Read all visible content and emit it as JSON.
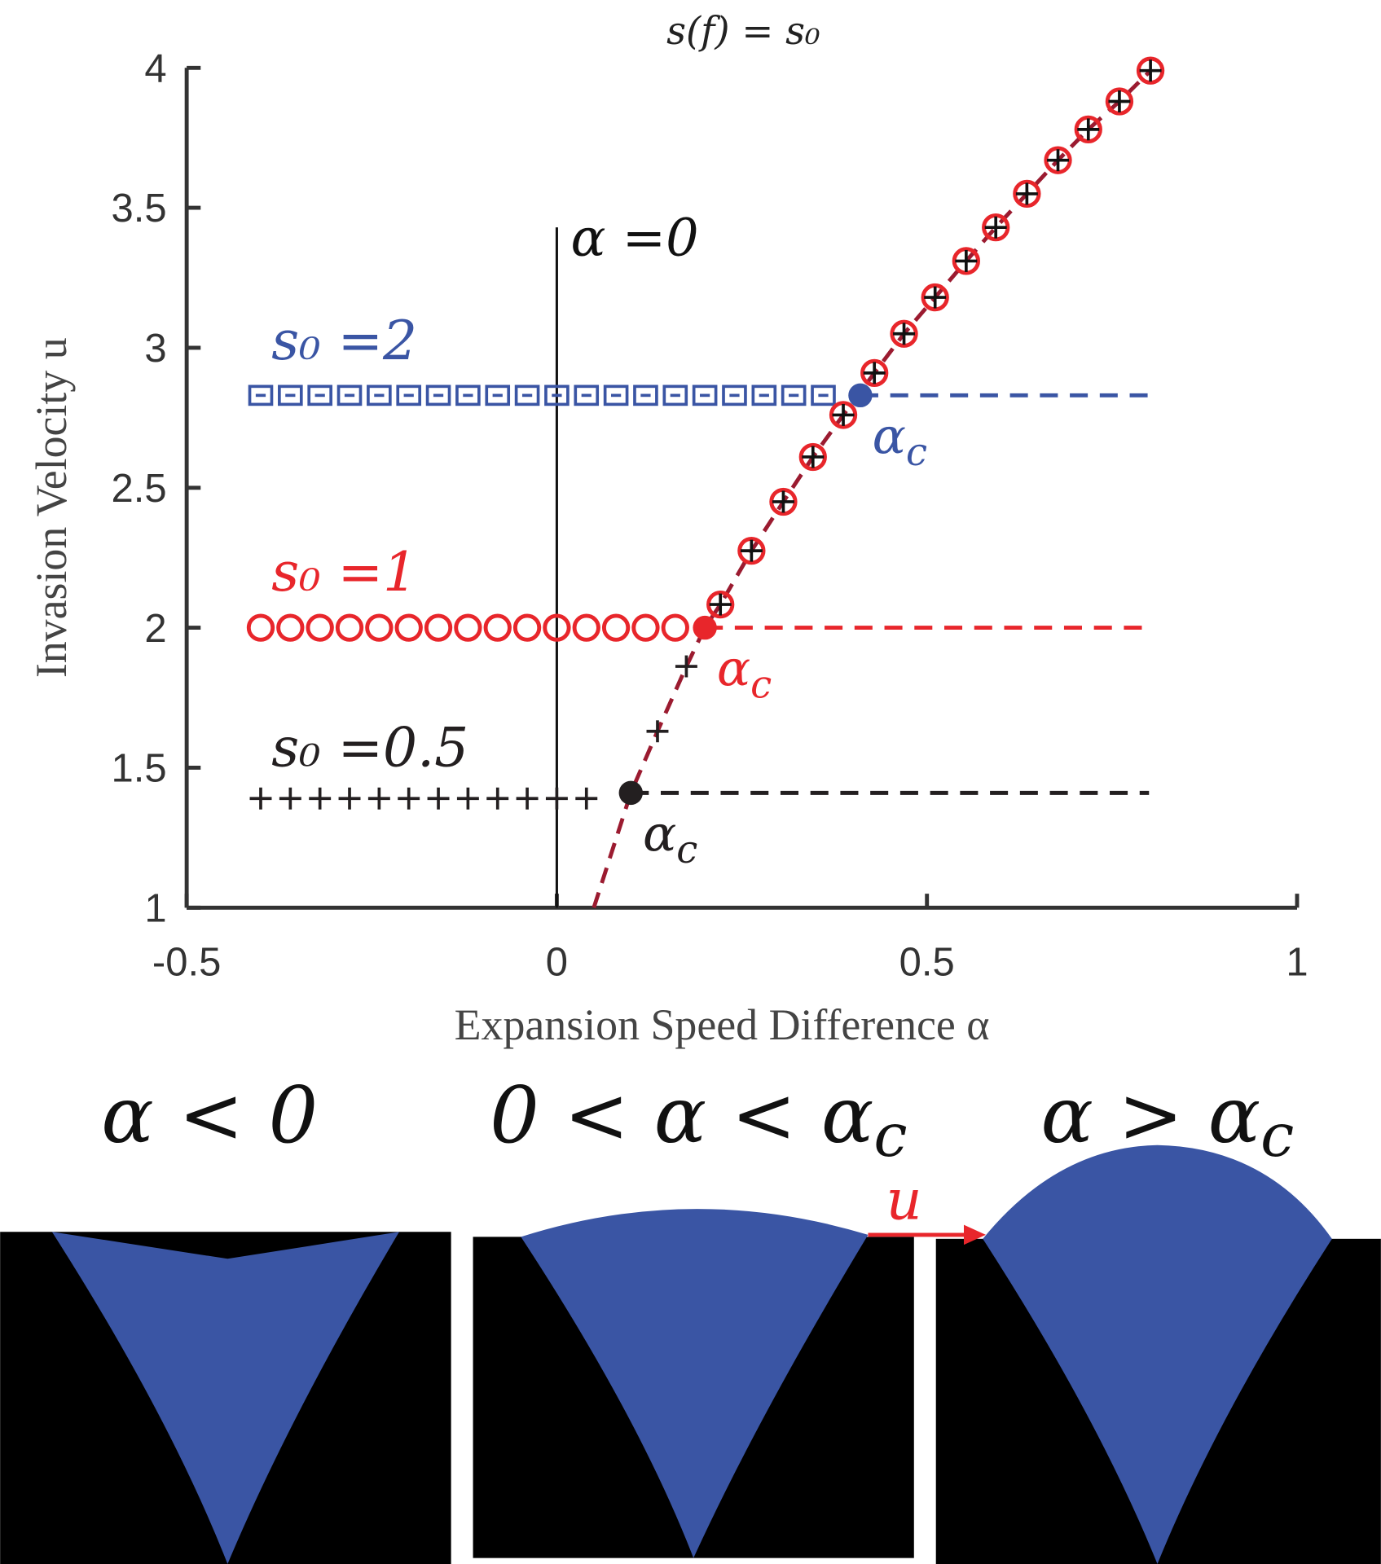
{
  "chart_data": {
    "type": "scatter",
    "title": "s(f) = s₀",
    "x_label": "Expansion Speed Difference α",
    "y_label": "Invasion Velocity u",
    "xlim": [
      -0.5,
      1
    ],
    "ylim": [
      1,
      4
    ],
    "xticks": [
      -0.5,
      0,
      0.5,
      1
    ],
    "yticks": [
      1,
      1.5,
      2,
      2.5,
      3,
      3.5,
      4
    ],
    "dash_end": 0.8,
    "series": [
      {
        "name": "s₀ =2",
        "color": "#3a55a4",
        "marker": "square",
        "x": [
          -0.4,
          -0.36,
          -0.32,
          -0.28,
          -0.24,
          -0.2,
          -0.16,
          -0.12,
          -0.08,
          -0.04,
          0,
          0.04,
          0.08,
          0.12,
          0.16,
          0.2,
          0.24,
          0.28,
          0.32,
          0.36
        ],
        "values": [
          2.83,
          2.83,
          2.83,
          2.83,
          2.83,
          2.83,
          2.83,
          2.83,
          2.83,
          2.83,
          2.83,
          2.83,
          2.83,
          2.83,
          2.83,
          2.83,
          2.83,
          2.83,
          2.83,
          2.83
        ],
        "critical": {
          "x": 0.41,
          "y": 2.83,
          "label": "α",
          "sub": "c"
        }
      },
      {
        "name": "s₀ =1",
        "color": "#e8262b",
        "marker": "circle",
        "x": [
          -0.4,
          -0.36,
          -0.32,
          -0.28,
          -0.24,
          -0.2,
          -0.16,
          -0.12,
          -0.08,
          -0.04,
          0,
          0.04,
          0.08,
          0.12,
          0.16
        ],
        "values": [
          2,
          2,
          2,
          2,
          2,
          2,
          2,
          2,
          2,
          2,
          2,
          2,
          2,
          2,
          2
        ],
        "critical": {
          "x": 0.2,
          "y": 2,
          "label": "α",
          "sub": "c"
        }
      },
      {
        "name": "s₀ =0.5",
        "color": "#231f20",
        "marker": "plus",
        "x": [
          -0.4,
          -0.36,
          -0.32,
          -0.28,
          -0.24,
          -0.2,
          -0.16,
          -0.12,
          -0.08,
          -0.04,
          0,
          0.04
        ],
        "values": [
          1.39,
          1.39,
          1.39,
          1.39,
          1.39,
          1.39,
          1.39,
          1.39,
          1.39,
          1.39,
          1.39,
          1.39
        ],
        "critical": {
          "x": 0.1,
          "y": 1.41,
          "label": "α",
          "sub": "c"
        }
      }
    ],
    "curve": {
      "color": "#9b1b30",
      "x": [
        0.05,
        0.1,
        0.136,
        0.175,
        0.2,
        0.221,
        0.263,
        0.306,
        0.346,
        0.387,
        0.429,
        0.469,
        0.511,
        0.553,
        0.593,
        0.635,
        0.677,
        0.718,
        0.76,
        0.802
      ],
      "values": [
        1,
        1.41,
        1.63,
        1.862,
        2,
        2.083,
        2.275,
        2.45,
        2.61,
        2.76,
        2.91,
        3.05,
        3.18,
        3.31,
        3.43,
        3.55,
        3.67,
        3.78,
        3.88,
        3.99
      ]
    },
    "branch_points": {
      "color": "#e8262b",
      "marker": "circle-plus",
      "x": [
        0.221,
        0.263,
        0.306,
        0.346,
        0.387,
        0.429,
        0.469,
        0.511,
        0.553,
        0.593,
        0.635,
        0.677,
        0.718,
        0.76,
        0.802
      ],
      "values": [
        2.083,
        2.275,
        2.45,
        2.61,
        2.76,
        2.91,
        3.05,
        3.18,
        3.31,
        3.43,
        3.55,
        3.67,
        3.78,
        3.88,
        3.99
      ]
    },
    "extra_points": {
      "color": "#231f20",
      "marker": "plus",
      "x": [
        0.136,
        0.175
      ],
      "values": [
        1.63,
        1.862
      ]
    },
    "zero_line": {
      "x": 0,
      "top": 3.43,
      "label": "α =0"
    }
  },
  "panels": [
    {
      "text": "α < 0",
      "sub": ""
    },
    {
      "text": "0 < α < α",
      "sub": "c"
    },
    {
      "text": "α > α",
      "sub": "c"
    }
  ],
  "arrow_label": "u"
}
